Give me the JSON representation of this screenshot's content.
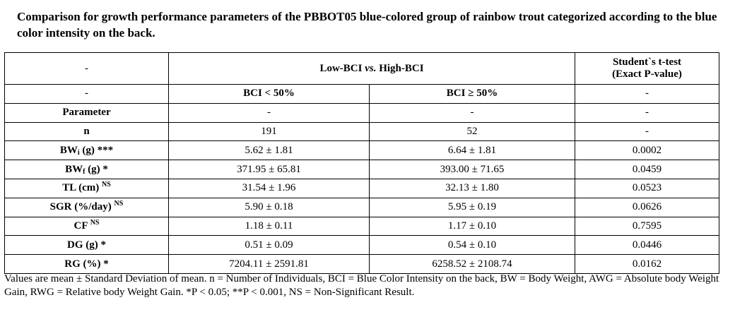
{
  "title": "Comparison for growth performance parameters of the PBBOT05 blue-colored group of rainbow trout categorized according to the blue color intensity on the back.",
  "header": {
    "dash": "-",
    "comparison_a": "Low-BCI ",
    "comparison_vs": "vs.",
    "comparison_b": " High-BCI",
    "ttest_line1": "Student`s t-test",
    "ttest_line2": "(Exact P-value)"
  },
  "groups": {
    "low": "BCI < 50%",
    "high": "BCI ≥ 50%"
  },
  "parameter_label": "Parameter",
  "rows": [
    {
      "label": "n",
      "sub": "",
      "suffix": "",
      "sup": "",
      "low": "191",
      "high": "52",
      "p": "-"
    },
    {
      "label": "BW",
      "sub": "i",
      "suffix": " (g) ***",
      "sup": "",
      "low": "5.62 ± 1.81",
      "high": "6.64 ± 1.81",
      "p": "0.0002"
    },
    {
      "label": "BW",
      "sub": "f",
      "suffix": " (g) *",
      "sup": "",
      "low": "371.95 ± 65.81",
      "high": "393.00 ± 71.65",
      "p": "0.0459"
    },
    {
      "label": "TL (cm)",
      "sub": "",
      "suffix": "",
      "sup": "NS",
      "low": "31.54 ± 1.96",
      "high": "32.13 ± 1.80",
      "p": "0.0523"
    },
    {
      "label": "SGR (%/day)",
      "sub": "",
      "suffix": "",
      "sup": "NS",
      "low": "5.90 ± 0.18",
      "high": "5.95 ± 0.19",
      "p": "0.0626"
    },
    {
      "label": "CF",
      "sub": "",
      "suffix": "",
      "sup": "NS",
      "low": "1.18 ± 0.11",
      "high": "1.17 ± 0.10",
      "p": "0.7595"
    },
    {
      "label": "DG (g) *",
      "sub": "",
      "suffix": "",
      "sup": "",
      "low": "0.51 ± 0.09",
      "high": "0.54 ± 0.10",
      "p": "0.0446"
    },
    {
      "label": "RG (%) *",
      "sub": "",
      "suffix": "",
      "sup": "",
      "low": "7204.11 ± 2591.81",
      "high": "6258.52 ± 2108.74",
      "p": "0.0162"
    }
  ],
  "footnote": "Values are mean ± Standard Deviation of mean. n = Number of Individuals, BCI = Blue Color Intensity on the back, BW = Body Weight, AWG = Absolute body Weight Gain, RWG = Relative body Weight Gain. *P < 0.05; **P < 0.001, NS = Non-Significant Result."
}
